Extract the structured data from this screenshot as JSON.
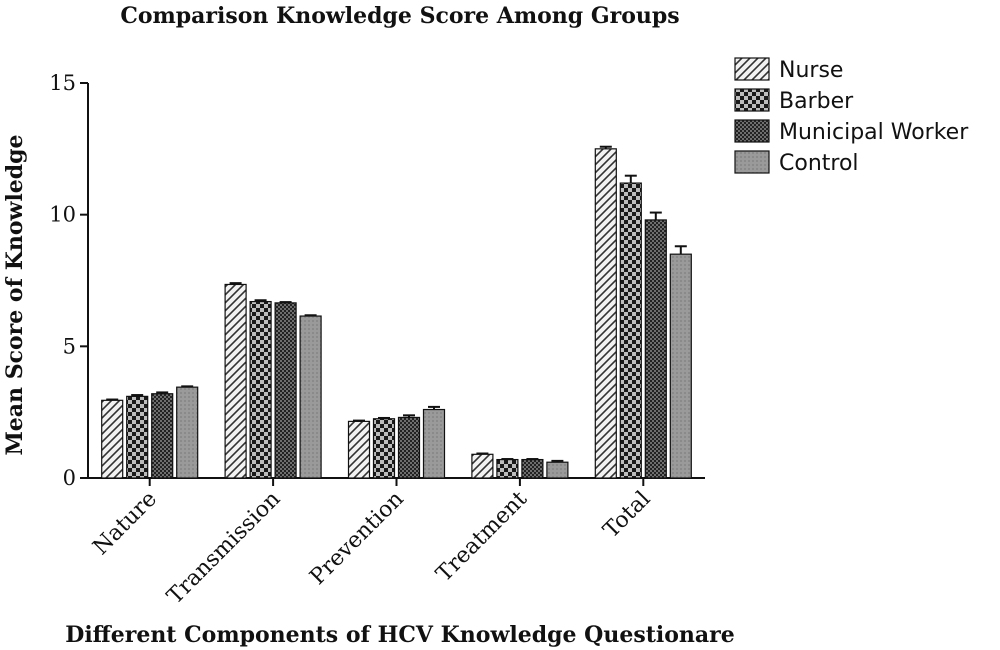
{
  "chart_data": {
    "type": "bar",
    "title": "Comparison Knowledge Score Among Groups",
    "xlabel": "Different Components of HCV Knowledge Questionare",
    "ylabel": "Mean Score of Knowledge",
    "categories": [
      "Nature",
      "Transmission",
      "Prevention",
      "Treatment",
      "Total"
    ],
    "ylim": [
      0,
      15
    ],
    "yticks": [
      0,
      5,
      10,
      15
    ],
    "grid": false,
    "legend_position": "top-right",
    "series": [
      {
        "name": "Nurse",
        "values": [
          2.95,
          7.35,
          2.15,
          0.9,
          12.5
        ],
        "errors": [
          0.03,
          0.05,
          0.03,
          0.03,
          0.08
        ],
        "color": "#e8e8e8",
        "pattern": "diagonal-stripes"
      },
      {
        "name": "Barber",
        "values": [
          3.1,
          6.7,
          2.25,
          0.7,
          11.2
        ],
        "errors": [
          0.05,
          0.05,
          0.03,
          0.02,
          0.28
        ],
        "color": "#1a1a1a",
        "pattern": "checkerboard"
      },
      {
        "name": "Municipal Worker",
        "values": [
          3.2,
          6.65,
          2.3,
          0.7,
          9.8
        ],
        "errors": [
          0.05,
          0.03,
          0.08,
          0.02,
          0.28
        ],
        "color": "#2a2a2a",
        "pattern": "fine-dots"
      },
      {
        "name": "Control",
        "values": [
          3.45,
          6.15,
          2.6,
          0.6,
          8.5
        ],
        "errors": [
          0.03,
          0.03,
          0.1,
          0.05,
          0.3
        ],
        "color": "#9a9a9a",
        "pattern": "solid-gray"
      }
    ]
  }
}
